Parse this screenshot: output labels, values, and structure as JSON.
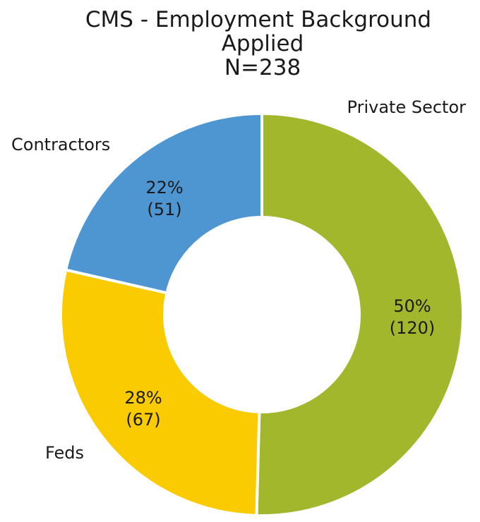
{
  "chart_data": {
    "type": "pie",
    "title_lines": [
      "CMS - Employment Background",
      "Applied",
      "N=238"
    ],
    "categories": [
      "Private Sector",
      "Feds",
      "Contractors"
    ],
    "values": [
      120,
      67,
      51
    ],
    "percent_labels": [
      "50%",
      "28%",
      "22%"
    ],
    "count_labels": [
      "(120)",
      "(67)",
      "(51)"
    ],
    "colors": [
      "#a2b72c",
      "#fbcb02",
      "#4e96d2"
    ],
    "donut": true,
    "start": "top",
    "direction": "clockwise"
  }
}
